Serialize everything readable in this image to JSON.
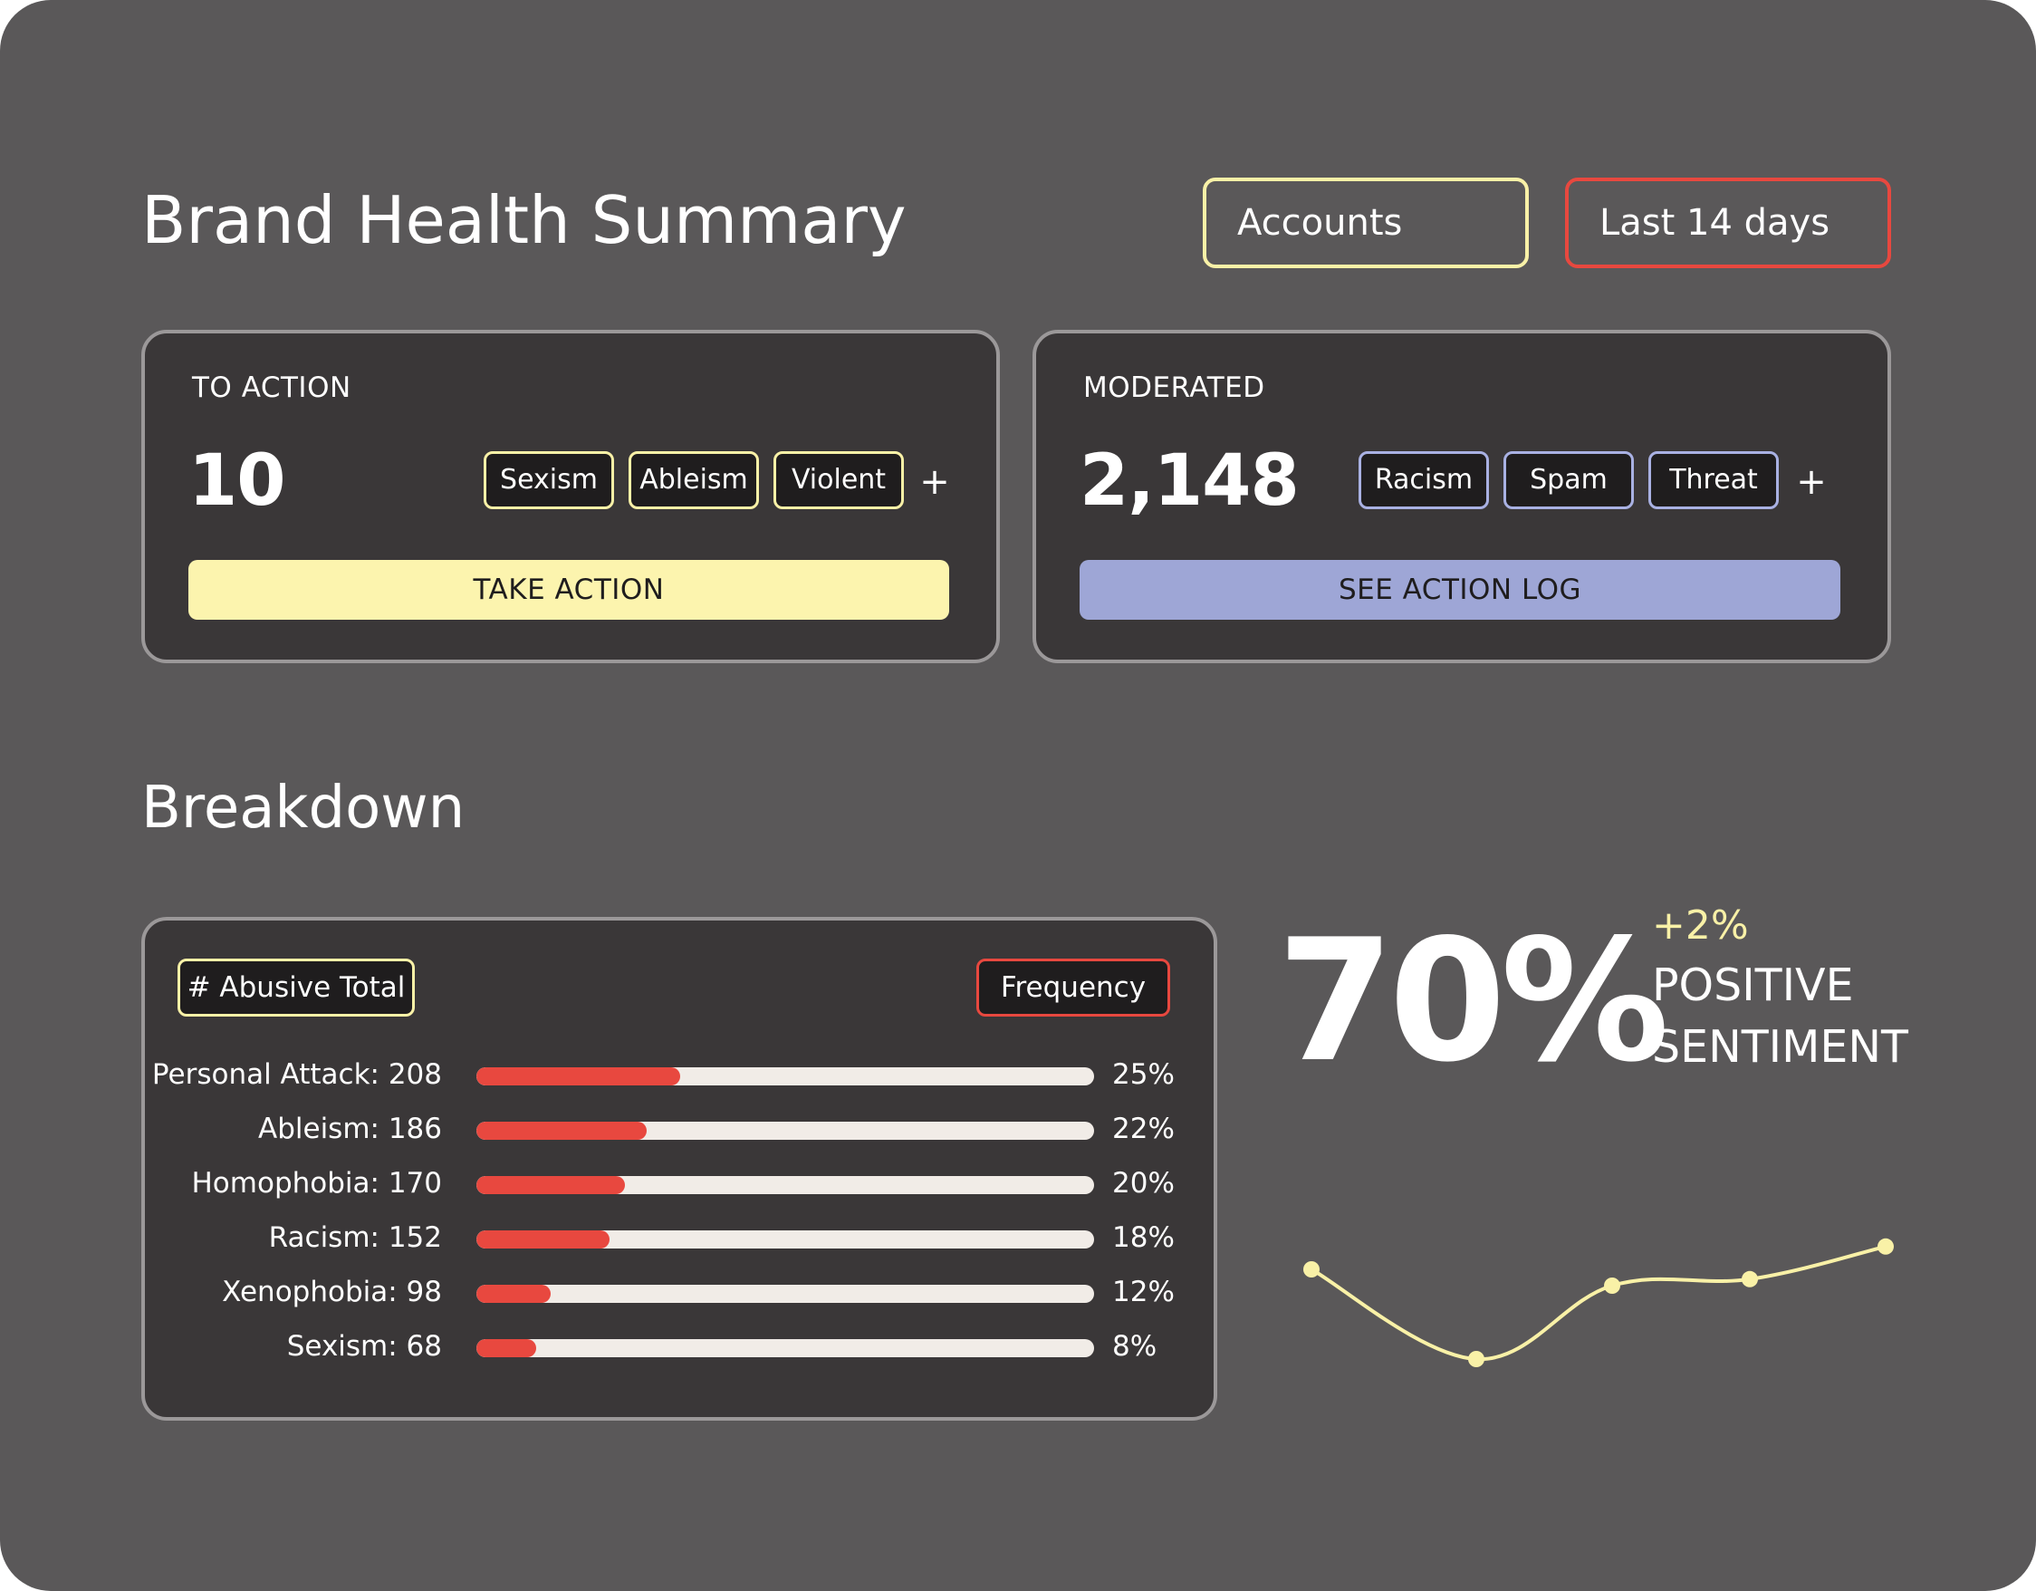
{
  "header": {
    "title": "Brand Health Summary",
    "filters": {
      "accounts": "Accounts",
      "range": "Last 14 days"
    }
  },
  "cards": {
    "to_action": {
      "label": "TO ACTION",
      "value": "10",
      "tags": [
        "Sexism",
        "Ableism",
        "Violent"
      ],
      "more": "+",
      "button": "TAKE ACTION"
    },
    "moderated": {
      "label": "MODERATED",
      "value": "2,148",
      "tags": [
        "Racism",
        "Spam",
        "Threat"
      ],
      "more": "+",
      "button": "SEE ACTION LOG"
    }
  },
  "breakdown": {
    "title": "Breakdown",
    "chips": {
      "abusive_total": "# Abusive Total",
      "frequency": "Frequency"
    },
    "rows": [
      {
        "label": "Personal Attack: 208",
        "pct": "25%",
        "value": 0.33
      },
      {
        "label": "Ableism: 186",
        "pct": "22%",
        "value": 0.275
      },
      {
        "label": "Homophobia: 170",
        "pct": "20%",
        "value": 0.24
      },
      {
        "label": "Racism: 152",
        "pct": "18%",
        "value": 0.215
      },
      {
        "label": "Xenophobia: 98",
        "pct": "12%",
        "value": 0.12
      },
      {
        "label": "Sexism: 68",
        "pct": "8%",
        "value": 0.097
      }
    ]
  },
  "sentiment": {
    "value": "70%",
    "delta": "+2%",
    "label_line1": "POSITIVE",
    "label_line2": "SENTIMENT",
    "trend": [
      0.55,
      0.0,
      0.45,
      0.49,
      0.69
    ]
  },
  "colors": {
    "background": "#5a5859",
    "card": "#3a3738",
    "yellow": "#fcf4ae",
    "lavender": "#9ea6d6",
    "red": "#e8483f",
    "track": "#f1ece7",
    "sparkline": "#f9f1a7"
  }
}
